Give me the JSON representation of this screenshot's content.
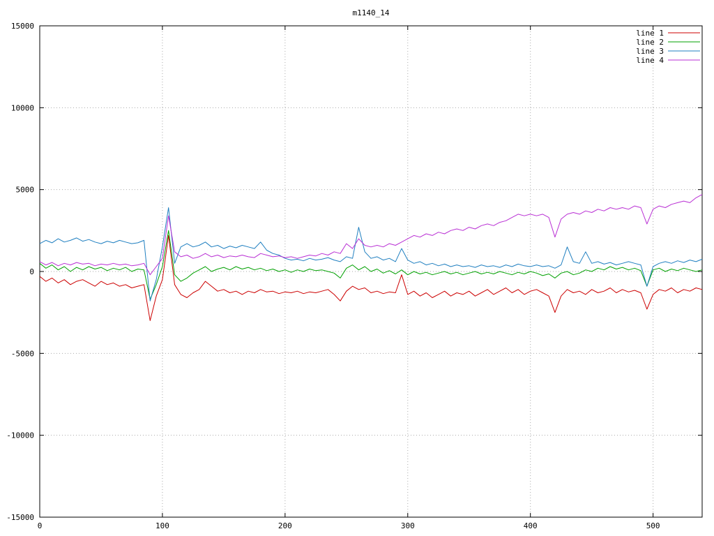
{
  "chart_data": {
    "type": "line",
    "title": "m1140_14",
    "xlim": [
      0,
      540
    ],
    "ylim": [
      -15000,
      15000
    ],
    "x_ticks": [
      0,
      100,
      200,
      300,
      400,
      500
    ],
    "y_ticks": [
      -15000,
      -10000,
      -5000,
      0,
      5000,
      10000,
      15000
    ],
    "grid": true,
    "legend_position": "top-right",
    "background": "#ffffff",
    "grid_color": "#aaaaaa",
    "axis_color": "#000000",
    "x": [
      0,
      5,
      10,
      15,
      20,
      25,
      30,
      35,
      40,
      45,
      50,
      55,
      60,
      65,
      70,
      75,
      80,
      85,
      90,
      95,
      100,
      105,
      110,
      115,
      120,
      125,
      130,
      135,
      140,
      145,
      150,
      155,
      160,
      165,
      170,
      175,
      180,
      185,
      190,
      195,
      200,
      205,
      210,
      215,
      220,
      225,
      230,
      235,
      240,
      245,
      250,
      255,
      260,
      265,
      270,
      275,
      280,
      285,
      290,
      295,
      300,
      305,
      310,
      315,
      320,
      325,
      330,
      335,
      340,
      345,
      350,
      355,
      360,
      365,
      370,
      375,
      380,
      385,
      390,
      395,
      400,
      405,
      410,
      415,
      420,
      425,
      430,
      435,
      440,
      445,
      450,
      455,
      460,
      465,
      470,
      475,
      480,
      485,
      490,
      495,
      500,
      505,
      510,
      515,
      520,
      525,
      530,
      535,
      540
    ],
    "series": [
      {
        "name": "line 1",
        "color": "#cc0000",
        "values": [
          -300,
          -600,
          -400,
          -700,
          -500,
          -800,
          -600,
          -500,
          -700,
          -900,
          -600,
          -800,
          -700,
          -900,
          -800,
          -1000,
          -900,
          -800,
          -3000,
          -1500,
          -500,
          2200,
          -800,
          -1400,
          -1600,
          -1300,
          -1100,
          -600,
          -900,
          -1200,
          -1100,
          -1300,
          -1200,
          -1400,
          -1200,
          -1300,
          -1100,
          -1250,
          -1200,
          -1350,
          -1250,
          -1300,
          -1200,
          -1350,
          -1250,
          -1300,
          -1200,
          -1100,
          -1400,
          -1800,
          -1200,
          -900,
          -1100,
          -1000,
          -1300,
          -1200,
          -1350,
          -1250,
          -1300,
          -200,
          -1400,
          -1200,
          -1500,
          -1300,
          -1600,
          -1400,
          -1200,
          -1500,
          -1300,
          -1400,
          -1200,
          -1500,
          -1300,
          -1100,
          -1400,
          -1200,
          -1000,
          -1300,
          -1100,
          -1400,
          -1200,
          -1100,
          -1300,
          -1500,
          -2500,
          -1500,
          -1100,
          -1300,
          -1200,
          -1400,
          -1100,
          -1300,
          -1200,
          -1000,
          -1300,
          -1100,
          -1250,
          -1150,
          -1300,
          -2300,
          -1400,
          -1100,
          -1200,
          -1000,
          -1300,
          -1100,
          -1200,
          -1000,
          -1100
        ]
      },
      {
        "name": "line 2",
        "color": "#00a000",
        "values": [
          500,
          200,
          400,
          100,
          300,
          0,
          250,
          100,
          300,
          150,
          250,
          50,
          200,
          100,
          250,
          0,
          150,
          100,
          -1700,
          -800,
          300,
          2500,
          -200,
          -600,
          -400,
          -100,
          100,
          300,
          0,
          150,
          250,
          100,
          300,
          150,
          250,
          100,
          200,
          50,
          150,
          0,
          100,
          -50,
          100,
          0,
          150,
          50,
          100,
          0,
          -100,
          -400,
          200,
          400,
          100,
          300,
          0,
          150,
          -100,
          50,
          -150,
          100,
          -200,
          0,
          -150,
          -50,
          -200,
          -100,
          0,
          -150,
          -50,
          -200,
          -100,
          0,
          -150,
          -50,
          -150,
          0,
          -100,
          -200,
          -50,
          -150,
          0,
          -100,
          -250,
          -150,
          -400,
          -100,
          0,
          -200,
          -100,
          100,
          0,
          200,
          100,
          300,
          150,
          250,
          100,
          200,
          50,
          -900,
          100,
          200,
          0,
          150,
          50,
          200,
          100,
          0,
          100
        ]
      },
      {
        "name": "line 3",
        "color": "#1f7fc0",
        "values": [
          1700,
          1900,
          1750,
          2000,
          1800,
          1900,
          2050,
          1850,
          1950,
          1800,
          1700,
          1850,
          1750,
          1900,
          1800,
          1700,
          1750,
          1900,
          -1800,
          -500,
          1500,
          3900,
          500,
          1500,
          1700,
          1500,
          1600,
          1800,
          1500,
          1600,
          1400,
          1550,
          1450,
          1600,
          1500,
          1400,
          1800,
          1300,
          1100,
          1000,
          800,
          700,
          750,
          650,
          800,
          700,
          750,
          850,
          700,
          600,
          900,
          800,
          2700,
          1200,
          800,
          900,
          700,
          800,
          600,
          1400,
          700,
          500,
          600,
          400,
          500,
          350,
          450,
          300,
          400,
          300,
          350,
          250,
          400,
          300,
          350,
          250,
          400,
          300,
          450,
          350,
          300,
          400,
          300,
          350,
          200,
          400,
          1500,
          600,
          500,
          1200,
          500,
          600,
          450,
          550,
          400,
          500,
          600,
          500,
          400,
          -900,
          300,
          500,
          600,
          500,
          650,
          550,
          700,
          600,
          750
        ]
      },
      {
        "name": "line 4",
        "color": "#b92fd4",
        "values": [
          600,
          400,
          550,
          350,
          500,
          400,
          550,
          450,
          500,
          350,
          450,
          400,
          500,
          400,
          450,
          350,
          400,
          500,
          -200,
          300,
          800,
          3400,
          1200,
          900,
          1000,
          800,
          900,
          1100,
          900,
          1000,
          850,
          950,
          900,
          1000,
          900,
          850,
          1100,
          1000,
          900,
          950,
          850,
          900,
          800,
          900,
          1000,
          950,
          1100,
          1000,
          1200,
          1100,
          1700,
          1400,
          2000,
          1600,
          1500,
          1600,
          1500,
          1700,
          1600,
          1800,
          2000,
          2200,
          2100,
          2300,
          2200,
          2400,
          2300,
          2500,
          2600,
          2500,
          2700,
          2600,
          2800,
          2900,
          2800,
          3000,
          3100,
          3300,
          3500,
          3400,
          3500,
          3400,
          3500,
          3300,
          2100,
          3200,
          3500,
          3600,
          3500,
          3700,
          3600,
          3800,
          3700,
          3900,
          3800,
          3900,
          3800,
          4000,
          3900,
          2900,
          3800,
          4000,
          3900,
          4100,
          4200,
          4300,
          4200,
          4500,
          4700
        ]
      }
    ]
  }
}
